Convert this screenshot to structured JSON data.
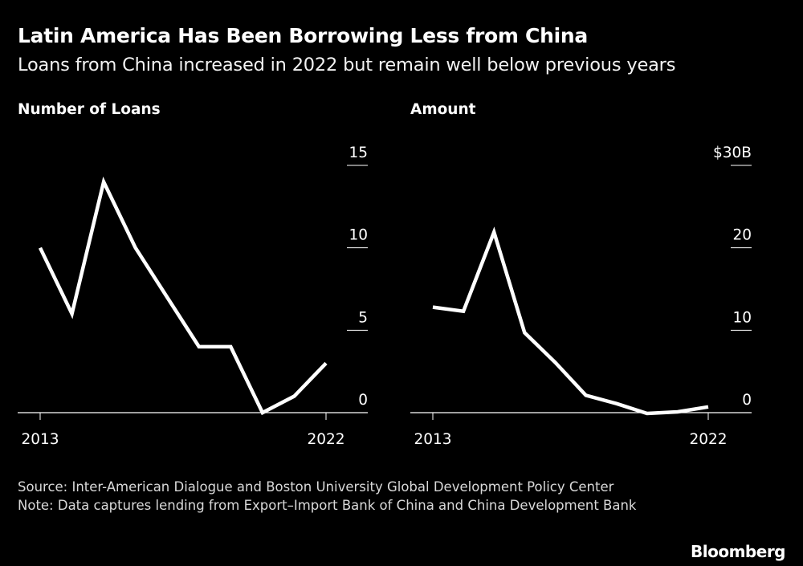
{
  "title": "Latin America Has Been Borrowing Less from China",
  "subtitle": "Loans from China increased in 2022 but remain well below previous years",
  "source_line": "Source: Inter-American Dialogue and Boston University Global Development Policy Center",
  "note_line": "Note: Data captures lending from Export–Import Bank of China and China Development Bank",
  "brand": "Bloomberg",
  "colors": {
    "background": "#000000",
    "line": "#ffffff",
    "axis": "#ffffff",
    "text": "#ffffff"
  },
  "chart_data": [
    {
      "type": "line",
      "title": "Number of Loans",
      "x": [
        2013,
        2014,
        2015,
        2016,
        2017,
        2018,
        2019,
        2020,
        2021,
        2022
      ],
      "x_tick_labels": [
        "2013",
        "2022"
      ],
      "series": [
        {
          "values": [
            10,
            6,
            14,
            10,
            7,
            4,
            4,
            0,
            1,
            3
          ]
        }
      ],
      "y_ticks": [
        0,
        5,
        10,
        15
      ],
      "y_tick_labels": [
        "0",
        "5",
        "10",
        "15"
      ],
      "ylim": [
        0,
        15
      ],
      "grid": false,
      "y_axis_side": "right"
    },
    {
      "type": "line",
      "title": "Amount",
      "x": [
        2013,
        2014,
        2015,
        2016,
        2017,
        2018,
        2019,
        2020,
        2021,
        2022
      ],
      "x_tick_labels": [
        "2013",
        "2022"
      ],
      "series": [
        {
          "values": [
            12.8,
            12.3,
            21.9,
            9.7,
            6.1,
            2.1,
            1.1,
            -0.1,
            0.1,
            0.7
          ]
        }
      ],
      "y_ticks": [
        0,
        10,
        20,
        30
      ],
      "y_tick_labels": [
        "0",
        "10",
        "20",
        "$30B"
      ],
      "ylim": [
        0,
        30
      ],
      "grid": false,
      "y_axis_side": "right"
    }
  ]
}
